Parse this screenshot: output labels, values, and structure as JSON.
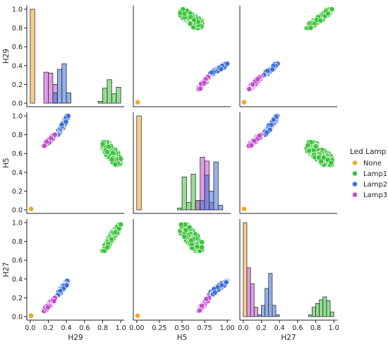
{
  "chart_data": {
    "type": "scatter",
    "kind": "pairplot",
    "variables": [
      "H29",
      "H5",
      "H27"
    ],
    "axis_range": [
      0,
      1
    ],
    "tick_values": [
      0.0,
      0.2,
      0.4,
      0.6,
      0.8,
      1.0
    ],
    "tick_values_mid_x": [
      0.0,
      0.25,
      0.5,
      0.75,
      1.0
    ],
    "tick_labels": [
      "0.0",
      "0.2",
      "0.4",
      "0.6",
      "0.8",
      "1.0"
    ],
    "tick_labels_mid_x": [
      "0.00",
      "0.25",
      "0.50",
      "0.75",
      "1.00"
    ],
    "legend": {
      "title": "Led Lamp",
      "position": "right",
      "items": [
        "None",
        "Lamp1",
        "Lamp2",
        "Lamp3"
      ]
    },
    "colors": {
      "None": "#f5a623",
      "Lamp1": "#3cc33c",
      "Lamp2": "#3d6fd8",
      "Lamp3": "#c24cd0"
    },
    "clusters": {
      "None": {
        "H29": [
          0.01,
          0.01
        ],
        "H5": [
          0.01,
          0.01
        ],
        "H27": [
          0.01,
          0.01
        ],
        "tilt": "none"
      },
      "Lamp1": {
        "H29": [
          0.8,
          1.0
        ],
        "H5": [
          0.48,
          0.72
        ],
        "H27": [
          0.7,
          0.98
        ],
        "tilt": "negative"
      },
      "Lamp2": {
        "H29": [
          0.3,
          0.42
        ],
        "H5": [
          0.8,
          1.0
        ],
        "H27": [
          0.23,
          0.38
        ],
        "tilt": "positive"
      },
      "Lamp3": {
        "H29": [
          0.15,
          0.28
        ],
        "H5": [
          0.68,
          0.8
        ],
        "H27": [
          0.06,
          0.2
        ],
        "tilt": "positive"
      }
    },
    "histograms": {
      "H29": [
        {
          "series": "None",
          "bins": [
            [
              0.0,
              0.05,
              1.0
            ]
          ]
        },
        {
          "series": "Lamp3",
          "bins": [
            [
              0.15,
              0.2,
              0.33
            ],
            [
              0.2,
              0.25,
              0.32
            ],
            [
              0.25,
              0.3,
              0.2
            ],
            [
              0.3,
              0.35,
              0.0
            ]
          ]
        },
        {
          "series": "Lamp2",
          "bins": [
            [
              0.15,
              0.2,
              0.0
            ],
            [
              0.25,
              0.3,
              0.11
            ],
            [
              0.3,
              0.35,
              0.36
            ],
            [
              0.35,
              0.4,
              0.42
            ],
            [
              0.4,
              0.45,
              0.11
            ]
          ]
        },
        {
          "series": "Lamp1",
          "bins": [
            [
              0.75,
              0.8,
              0.02
            ],
            [
              0.8,
              0.85,
              0.16
            ],
            [
              0.85,
              0.9,
              0.25
            ],
            [
              0.9,
              0.95,
              0.1
            ],
            [
              0.95,
              1.0,
              0.17
            ]
          ]
        }
      ],
      "H5": [
        {
          "series": "None",
          "bins": [
            [
              0.0,
              0.05,
              1.0
            ]
          ]
        },
        {
          "series": "Lamp1",
          "bins": [
            [
              0.45,
              0.5,
              0.02
            ],
            [
              0.5,
              0.55,
              0.35
            ],
            [
              0.55,
              0.6,
              0.08
            ],
            [
              0.6,
              0.65,
              0.38
            ],
            [
              0.65,
              0.7,
              0.1
            ]
          ]
        },
        {
          "series": "Lamp3",
          "bins": [
            [
              0.65,
              0.7,
              0.1
            ],
            [
              0.7,
              0.75,
              0.56
            ],
            [
              0.75,
              0.8,
              0.52
            ],
            [
              0.8,
              0.85,
              0.08
            ]
          ]
        },
        {
          "series": "Lamp2",
          "bins": [
            [
              0.7,
              0.75,
              0.1
            ],
            [
              0.75,
              0.8,
              0.37
            ],
            [
              0.8,
              0.85,
              0.2
            ],
            [
              0.85,
              0.9,
              0.51
            ],
            [
              0.9,
              0.95,
              0.05
            ]
          ]
        }
      ],
      "H27": [
        {
          "series": "None",
          "bins": [
            [
              0.0,
              0.04,
              1.0
            ]
          ]
        },
        {
          "series": "Lamp3",
          "bins": [
            [
              0.04,
              0.08,
              0.52
            ],
            [
              0.08,
              0.12,
              0.35
            ],
            [
              0.12,
              0.16,
              0.1
            ]
          ]
        },
        {
          "series": "Lamp2",
          "bins": [
            [
              0.16,
              0.2,
              0.02
            ],
            [
              0.2,
              0.24,
              0.12
            ],
            [
              0.24,
              0.28,
              0.3
            ],
            [
              0.28,
              0.32,
              0.46
            ],
            [
              0.32,
              0.36,
              0.12
            ],
            [
              0.36,
              0.4,
              0.02
            ]
          ]
        },
        {
          "series": "Lamp1",
          "bins": [
            [
              0.72,
              0.76,
              0.02
            ],
            [
              0.76,
              0.8,
              0.1
            ],
            [
              0.8,
              0.84,
              0.14
            ],
            [
              0.84,
              0.88,
              0.18
            ],
            [
              0.88,
              0.92,
              0.21
            ],
            [
              0.92,
              0.96,
              0.17
            ],
            [
              0.96,
              1.0,
              0.05
            ]
          ]
        }
      ]
    }
  }
}
